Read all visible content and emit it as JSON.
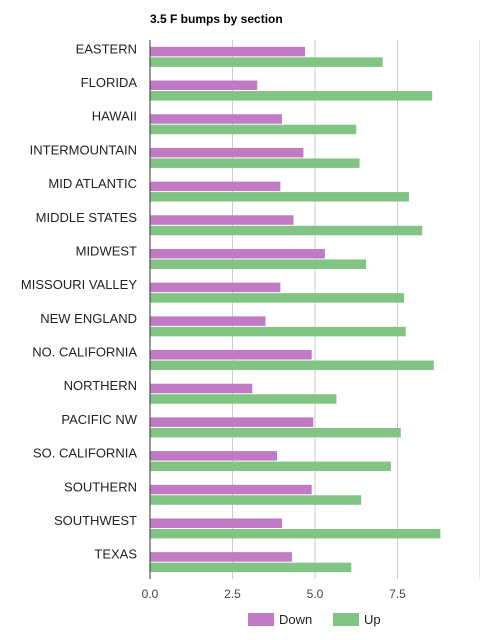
{
  "chart_data": {
    "type": "bar",
    "orientation": "horizontal",
    "title": "3.5 F bumps by section",
    "xlabel": "",
    "ylabel": "",
    "categories": [
      "EASTERN",
      "FLORIDA",
      "HAWAII",
      "INTERMOUNTAIN",
      "MID ATLANTIC",
      "MIDDLE STATES",
      "MIDWEST",
      "MISSOURI VALLEY",
      "NEW ENGLAND",
      "NO. CALIFORNIA",
      "NORTHERN",
      "PACIFIC NW",
      "SO. CALIFORNIA",
      "SOUTHERN",
      "SOUTHWEST",
      "TEXAS"
    ],
    "series": [
      {
        "name": "Down",
        "color": "#c17ac4",
        "values": [
          4.7,
          3.25,
          4.0,
          4.65,
          3.95,
          4.35,
          5.3,
          3.95,
          3.5,
          4.9,
          3.1,
          4.95,
          3.85,
          4.9,
          4.0,
          4.3
        ]
      },
      {
        "name": "Up",
        "color": "#82c484",
        "values": [
          7.05,
          8.55,
          6.25,
          6.35,
          7.85,
          8.25,
          6.55,
          7.7,
          7.75,
          8.6,
          5.65,
          7.6,
          7.3,
          6.4,
          8.8,
          6.1
        ]
      }
    ],
    "xlim": [
      0,
      10
    ],
    "xticks": [
      "0.0",
      "2.5",
      "5.0",
      "7.5"
    ],
    "grid": true,
    "legend": "bottom"
  }
}
